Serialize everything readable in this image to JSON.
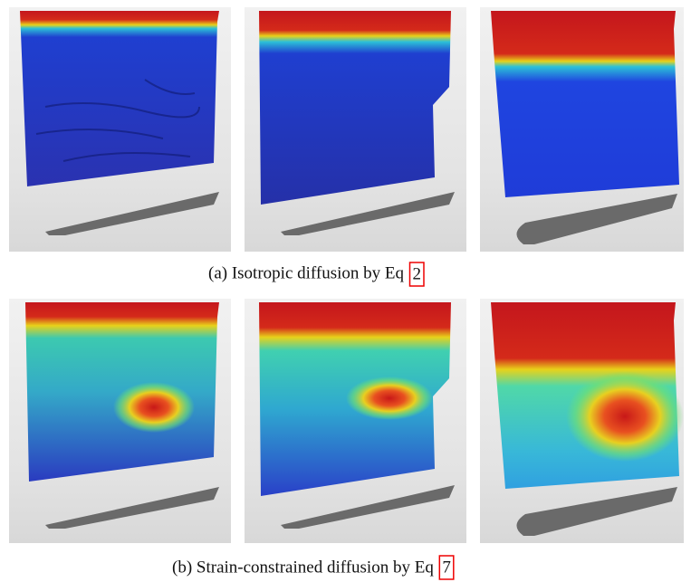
{
  "figure": {
    "subfigures": [
      {
        "caption": "(a) Isotropic diffusion by Eq",
        "ref": "2"
      },
      {
        "caption": "(b) Strain-constrained diffusion by Eq",
        "ref": "7"
      }
    ]
  }
}
